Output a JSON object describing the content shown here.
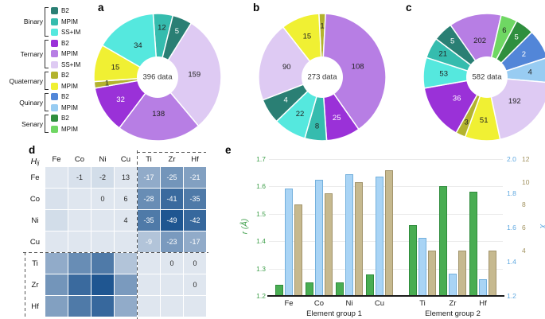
{
  "figure": {
    "panels": {
      "a": "a",
      "b": "b",
      "c": "c",
      "d": "d",
      "e": "e"
    }
  },
  "palette": {
    "binary_b2": "#2a7f74",
    "binary_mpim": "#35bcae",
    "binary_ssim": "#55e8de",
    "ternary_b2": "#9a31d8",
    "ternary_mpim": "#b77ee4",
    "ternary_ssim": "#decaf3",
    "quaternary_b2": "#b3b32e",
    "quaternary_mpim": "#f0f033",
    "quinary_b2": "#5286d8",
    "quinary_mpim": "#98ccf2",
    "senary_b2": "#2f8f3e",
    "senary_mpim": "#6fd763"
  },
  "legend": {
    "groups": [
      {
        "name": "Binary",
        "items": [
          {
            "label": "B2",
            "color": "binary_b2"
          },
          {
            "label": "MPIM",
            "color": "binary_mpim"
          },
          {
            "label": "SS+IM",
            "color": "binary_ssim"
          }
        ]
      },
      {
        "name": "Ternary",
        "items": [
          {
            "label": "B2",
            "color": "ternary_b2"
          },
          {
            "label": "MPIM",
            "color": "ternary_mpim"
          },
          {
            "label": "SS+IM",
            "color": "ternary_ssim"
          }
        ]
      },
      {
        "name": "Quaternary",
        "items": [
          {
            "label": "B2",
            "color": "quaternary_b2"
          },
          {
            "label": "MPIM",
            "color": "quaternary_mpim"
          }
        ]
      },
      {
        "name": "Quinary",
        "items": [
          {
            "label": "B2",
            "color": "quinary_b2"
          },
          {
            "label": "MPIM",
            "color": "quinary_mpim"
          }
        ]
      },
      {
        "name": "Senary",
        "items": [
          {
            "label": "B2",
            "color": "senary_b2"
          },
          {
            "label": "MPIM",
            "color": "senary_mpim"
          }
        ]
      }
    ]
  },
  "chart_data": [
    {
      "type": "pie",
      "panel": "a",
      "center_label": "396 data",
      "total": 396,
      "segments": [
        {
          "value": 12,
          "color": "binary_mpim",
          "start": -4,
          "end": 14
        },
        {
          "value": 5,
          "color": "binary_b2",
          "start": 14,
          "end": 32
        },
        {
          "value": 159,
          "color": "ternary_ssim",
          "start": 32,
          "end": 140
        },
        {
          "value": 138,
          "color": "ternary_mpim",
          "start": 140,
          "end": 217
        },
        {
          "value": 32,
          "color": "ternary_b2",
          "start": 217,
          "end": 260
        },
        {
          "value": 1,
          "color": "quaternary_b2",
          "start": 260,
          "end": 266
        },
        {
          "value": 15,
          "color": "quaternary_mpim",
          "start": 266,
          "end": 300
        },
        {
          "value": 34,
          "color": "binary_ssim",
          "start": 300,
          "end": 356
        }
      ]
    },
    {
      "type": "pie",
      "panel": "b",
      "center_label": "273 data",
      "total": 273,
      "segments": [
        {
          "value": 1,
          "color": "quaternary_b2",
          "start": -3,
          "end": 3
        },
        {
          "value": 108,
          "color": "ternary_mpim",
          "start": 3,
          "end": 145
        },
        {
          "value": 25,
          "color": "ternary_b2",
          "start": 145,
          "end": 176
        },
        {
          "value": 8,
          "color": "binary_mpim",
          "start": 176,
          "end": 196
        },
        {
          "value": 22,
          "color": "binary_ssim",
          "start": 196,
          "end": 226
        },
        {
          "value": 4,
          "color": "binary_b2",
          "start": 226,
          "end": 249
        },
        {
          "value": 90,
          "color": "ternary_ssim",
          "start": 249,
          "end": 322
        },
        {
          "value": 15,
          "color": "quaternary_mpim",
          "start": 322,
          "end": 357
        }
      ]
    },
    {
      "type": "pie",
      "panel": "c",
      "center_label": "582 data",
      "total": 582,
      "segments": [
        {
          "value": 202,
          "color": "ternary_mpim",
          "start": -35,
          "end": 13
        },
        {
          "value": 6,
          "color": "senary_mpim",
          "start": 13,
          "end": 28
        },
        {
          "value": 5,
          "color": "senary_b2",
          "start": 28,
          "end": 45
        },
        {
          "value": 2,
          "color": "quinary_b2",
          "start": 45,
          "end": 72
        },
        {
          "value": 4,
          "color": "quinary_mpim",
          "start": 72,
          "end": 95
        },
        {
          "value": 192,
          "color": "ternary_ssim",
          "start": 95,
          "end": 168
        },
        {
          "value": 51,
          "color": "quaternary_mpim",
          "start": 168,
          "end": 200
        },
        {
          "value": 3,
          "color": "quaternary_b2",
          "start": 200,
          "end": 209
        },
        {
          "value": 36,
          "color": "ternary_b2",
          "start": 209,
          "end": 260
        },
        {
          "value": 53,
          "color": "binary_ssim",
          "start": 260,
          "end": 288
        },
        {
          "value": 21,
          "color": "binary_mpim",
          "start": 288,
          "end": 307
        },
        {
          "value": 5,
          "color": "binary_b2",
          "start": 307,
          "end": 325
        }
      ]
    },
    {
      "type": "heatmap",
      "panel": "d",
      "title_main": "H",
      "title_sub": "ij",
      "elements": [
        "Fe",
        "Co",
        "Ni",
        "Cu",
        "Ti",
        "Zr",
        "Hf"
      ],
      "matrix": [
        [
          null,
          -1,
          -2,
          13,
          -17,
          -25,
          -21
        ],
        [
          null,
          null,
          0,
          6,
          -28,
          -41,
          -35
        ],
        [
          null,
          null,
          null,
          4,
          -35,
          -49,
          -42
        ],
        [
          null,
          null,
          null,
          null,
          -9,
          -23,
          -17
        ],
        [
          null,
          null,
          null,
          null,
          null,
          0,
          0
        ],
        [
          null,
          null,
          null,
          null,
          null,
          null,
          0
        ],
        [
          null,
          null,
          null,
          null,
          null,
          null,
          null
        ]
      ]
    },
    {
      "type": "bar",
      "panel": "e",
      "categories": [
        "Fe",
        "Co",
        "Ni",
        "Cu",
        "Ti",
        "Zr",
        "Hf"
      ],
      "groups": [
        {
          "label": "Element group 1",
          "count": 4
        },
        {
          "label": "Element group 2",
          "count": 3
        }
      ],
      "series": [
        {
          "name": "r",
          "axis_label": "r (Å)",
          "color": "#49ad52",
          "border": "#2f8c3c",
          "tick_color": "#3f9f4b",
          "range": [
            1.2,
            1.7
          ],
          "ticks": [
            1.2,
            1.3,
            1.4,
            1.5,
            1.6,
            1.7
          ],
          "decimals": 1,
          "values": [
            1.24,
            1.25,
            1.25,
            1.28,
            1.46,
            1.6,
            1.58
          ]
        },
        {
          "name": "χ",
          "axis_label": "χ",
          "color": "#a9d4f5",
          "border": "#74b0dc",
          "tick_color": "#5fa8e0",
          "range": [
            1.2,
            2.0
          ],
          "ticks": [
            1.2,
            1.4,
            1.6,
            1.8,
            2.0
          ],
          "decimals": 1,
          "values": [
            1.83,
            1.88,
            1.91,
            1.9,
            1.54,
            1.33,
            1.3
          ]
        },
        {
          "name": "VEC",
          "axis_label": "VEC",
          "color": "#c6b98f",
          "border": "#a2946c",
          "tick_color": "#a1925f",
          "range": [
            0,
            12
          ],
          "ticks": [
            4,
            6,
            8,
            10,
            12
          ],
          "decimals": 0,
          "values": [
            8,
            9,
            10,
            11,
            4,
            4,
            4
          ]
        }
      ]
    }
  ]
}
